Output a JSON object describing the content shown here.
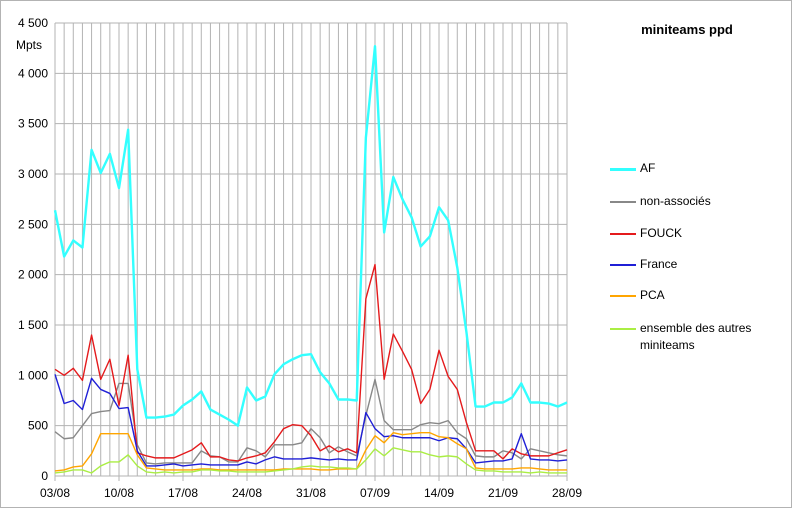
{
  "chart_data": {
    "type": "line",
    "title": "miniteams ppd",
    "ylabel": "Mpts",
    "xlabel": "",
    "ylim": [
      0,
      4500
    ],
    "yticks": [
      0,
      500,
      1000,
      1500,
      2000,
      2500,
      3000,
      3500,
      4000,
      4500
    ],
    "ytick_labels": [
      "0",
      "500",
      "1 000",
      "1 500",
      "2 000",
      "2 500",
      "3 000",
      "3 500",
      "4 000",
      "4 500"
    ],
    "xtick_labels": [
      "03/08",
      "10/08",
      "17/08",
      "24/08",
      "31/08",
      "07/09",
      "14/09",
      "21/09",
      "28/09"
    ],
    "x_start_day": 0,
    "x_end_day": 56,
    "grid": true,
    "legend_position": "right",
    "series": [
      {
        "name": "AF",
        "color": "#33ffff",
        "width": 2.4,
        "values": [
          2640,
          2180,
          2340,
          2270,
          3240,
          3010,
          3200,
          2860,
          3440,
          1060,
          580,
          580,
          590,
          610,
          700,
          760,
          840,
          660,
          610,
          560,
          500,
          880,
          750,
          790,
          1010,
          1110,
          1160,
          1200,
          1210,
          1030,
          920,
          760,
          760,
          750,
          3360,
          4270,
          2420,
          2970,
          2750,
          2570,
          2280,
          2380,
          2670,
          2540,
          2070,
          1430,
          690,
          690,
          730,
          730,
          780,
          920,
          730,
          730,
          720,
          690,
          730
        ]
      },
      {
        "name": "non-associés",
        "color": "#888888",
        "width": 1.4,
        "values": [
          440,
          370,
          380,
          500,
          620,
          640,
          650,
          920,
          920,
          310,
          130,
          120,
          130,
          130,
          130,
          130,
          250,
          200,
          190,
          140,
          140,
          280,
          250,
          190,
          310,
          310,
          310,
          330,
          470,
          380,
          230,
          290,
          240,
          200,
          600,
          960,
          550,
          460,
          460,
          460,
          510,
          530,
          520,
          550,
          430,
          370,
          200,
          190,
          190,
          250,
          230,
          170,
          270,
          250,
          230,
          210,
          200
        ]
      },
      {
        "name": "FOUCK",
        "color": "#e41a1c",
        "width": 1.4,
        "values": [
          1060,
          1000,
          1070,
          950,
          1400,
          960,
          1160,
          700,
          1200,
          230,
          200,
          180,
          180,
          180,
          220,
          260,
          330,
          190,
          190,
          160,
          150,
          180,
          200,
          230,
          340,
          470,
          510,
          500,
          400,
          250,
          300,
          240,
          270,
          230,
          1760,
          2100,
          960,
          1410,
          1240,
          1060,
          720,
          860,
          1250,
          990,
          860,
          530,
          250,
          250,
          250,
          170,
          270,
          220,
          200,
          200,
          200,
          230,
          260
        ]
      },
      {
        "name": "France",
        "color": "#1f1fd6",
        "width": 1.4,
        "values": [
          1010,
          720,
          750,
          660,
          970,
          860,
          820,
          670,
          680,
          250,
          100,
          100,
          110,
          120,
          100,
          110,
          120,
          110,
          110,
          110,
          110,
          140,
          120,
          160,
          190,
          170,
          170,
          170,
          180,
          170,
          160,
          170,
          160,
          160,
          630,
          470,
          390,
          400,
          380,
          380,
          380,
          380,
          350,
          380,
          370,
          270,
          130,
          140,
          150,
          150,
          170,
          420,
          170,
          160,
          160,
          150,
          160
        ]
      },
      {
        "name": "PCA",
        "color": "#ffa500",
        "width": 1.4,
        "values": [
          50,
          60,
          90,
          100,
          220,
          420,
          420,
          420,
          420,
          210,
          80,
          70,
          60,
          60,
          60,
          60,
          70,
          70,
          60,
          60,
          60,
          60,
          60,
          60,
          60,
          70,
          70,
          70,
          70,
          60,
          60,
          70,
          70,
          70,
          260,
          400,
          330,
          430,
          410,
          420,
          430,
          430,
          390,
          380,
          320,
          270,
          80,
          70,
          70,
          70,
          70,
          80,
          80,
          70,
          60,
          60,
          60
        ]
      },
      {
        "name": "ensemble des autres miniteams",
        "color": "#aaee44",
        "width": 1.4,
        "values": [
          30,
          40,
          60,
          60,
          30,
          100,
          140,
          140,
          210,
          100,
          40,
          30,
          40,
          30,
          40,
          40,
          60,
          60,
          50,
          50,
          40,
          40,
          40,
          40,
          50,
          60,
          70,
          90,
          100,
          90,
          90,
          80,
          80,
          70,
          160,
          270,
          200,
          280,
          260,
          240,
          240,
          210,
          190,
          200,
          190,
          120,
          60,
          50,
          50,
          40,
          40,
          40,
          30,
          40,
          30,
          30,
          30
        ]
      }
    ]
  }
}
